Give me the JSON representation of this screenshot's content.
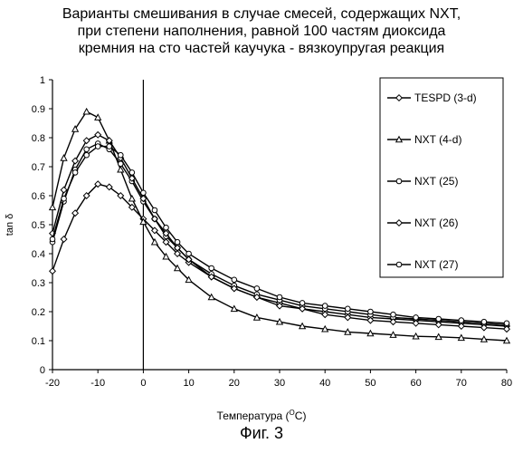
{
  "title_lines": [
    "Варианты смешивания в случае смесей, содержащих NXT,",
    "при степени наполнения, равной 100 частям диоксида",
    "кремния на сто частей каучука - вязкоупругая реакция"
  ],
  "xlabel_pre": "Температура (",
  "xlabel_sup": "O",
  "xlabel_post": "C)",
  "figure_caption": "Фиг. 3",
  "chart_data": {
    "type": "line",
    "title": "Варианты смешивания в случае смесей, содержащих NXT, при степени наполнения, равной 100 частям диоксида кремния на сто частей каучука - вязкоупругая реакция",
    "xlabel": "Температура (OC)",
    "ylabel": "tan δ",
    "xlim": [
      -20,
      80
    ],
    "ylim": [
      0,
      1
    ],
    "xticks": [
      -20,
      -10,
      0,
      10,
      20,
      30,
      40,
      50,
      60,
      70,
      80
    ],
    "yticks": [
      0,
      0.1,
      0.2,
      0.3,
      0.4,
      0.5,
      0.6,
      0.7,
      0.8,
      0.9,
      1
    ],
    "grid": false,
    "legend_position": "right",
    "vline_x": 0,
    "x": [
      -20,
      -17.5,
      -15,
      -12.5,
      -10,
      -7.5,
      -5,
      -2.5,
      0,
      2.5,
      5,
      7.5,
      10,
      15,
      20,
      25,
      30,
      35,
      40,
      45,
      50,
      55,
      60,
      65,
      70,
      75,
      80
    ],
    "series": [
      {
        "name": "TESPD (3-d)",
        "marker": "diamond",
        "values": [
          0.34,
          0.45,
          0.54,
          0.6,
          0.64,
          0.63,
          0.6,
          0.56,
          0.52,
          0.48,
          0.44,
          0.4,
          0.37,
          0.32,
          0.28,
          0.25,
          0.23,
          0.21,
          0.2,
          0.19,
          0.18,
          0.175,
          0.17,
          0.165,
          0.16,
          0.155,
          0.15
        ]
      },
      {
        "name": "NXT (4-d)",
        "marker": "triangle",
        "values": [
          0.56,
          0.73,
          0.83,
          0.89,
          0.87,
          0.79,
          0.69,
          0.59,
          0.51,
          0.44,
          0.39,
          0.35,
          0.31,
          0.25,
          0.21,
          0.18,
          0.165,
          0.15,
          0.14,
          0.13,
          0.125,
          0.12,
          0.115,
          0.113,
          0.11,
          0.105,
          0.1
        ]
      },
      {
        "name": "NXT (25)",
        "marker": "circle",
        "values": [
          0.44,
          0.58,
          0.69,
          0.76,
          0.78,
          0.76,
          0.71,
          0.65,
          0.58,
          0.52,
          0.46,
          0.42,
          0.38,
          0.33,
          0.29,
          0.26,
          0.24,
          0.22,
          0.21,
          0.2,
          0.19,
          0.18,
          0.175,
          0.17,
          0.165,
          0.16,
          0.155
        ]
      },
      {
        "name": "NXT (26)",
        "marker": "diamond",
        "values": [
          0.47,
          0.62,
          0.72,
          0.79,
          0.81,
          0.79,
          0.73,
          0.66,
          0.59,
          0.52,
          0.47,
          0.42,
          0.38,
          0.32,
          0.28,
          0.25,
          0.22,
          0.21,
          0.19,
          0.18,
          0.17,
          0.165,
          0.16,
          0.155,
          0.15,
          0.145,
          0.14
        ]
      },
      {
        "name": "NXT (27)",
        "marker": "circle",
        "values": [
          0.45,
          0.59,
          0.68,
          0.74,
          0.77,
          0.77,
          0.74,
          0.68,
          0.61,
          0.55,
          0.49,
          0.44,
          0.4,
          0.35,
          0.31,
          0.28,
          0.25,
          0.23,
          0.22,
          0.21,
          0.2,
          0.19,
          0.18,
          0.175,
          0.17,
          0.165,
          0.16
        ]
      }
    ]
  }
}
